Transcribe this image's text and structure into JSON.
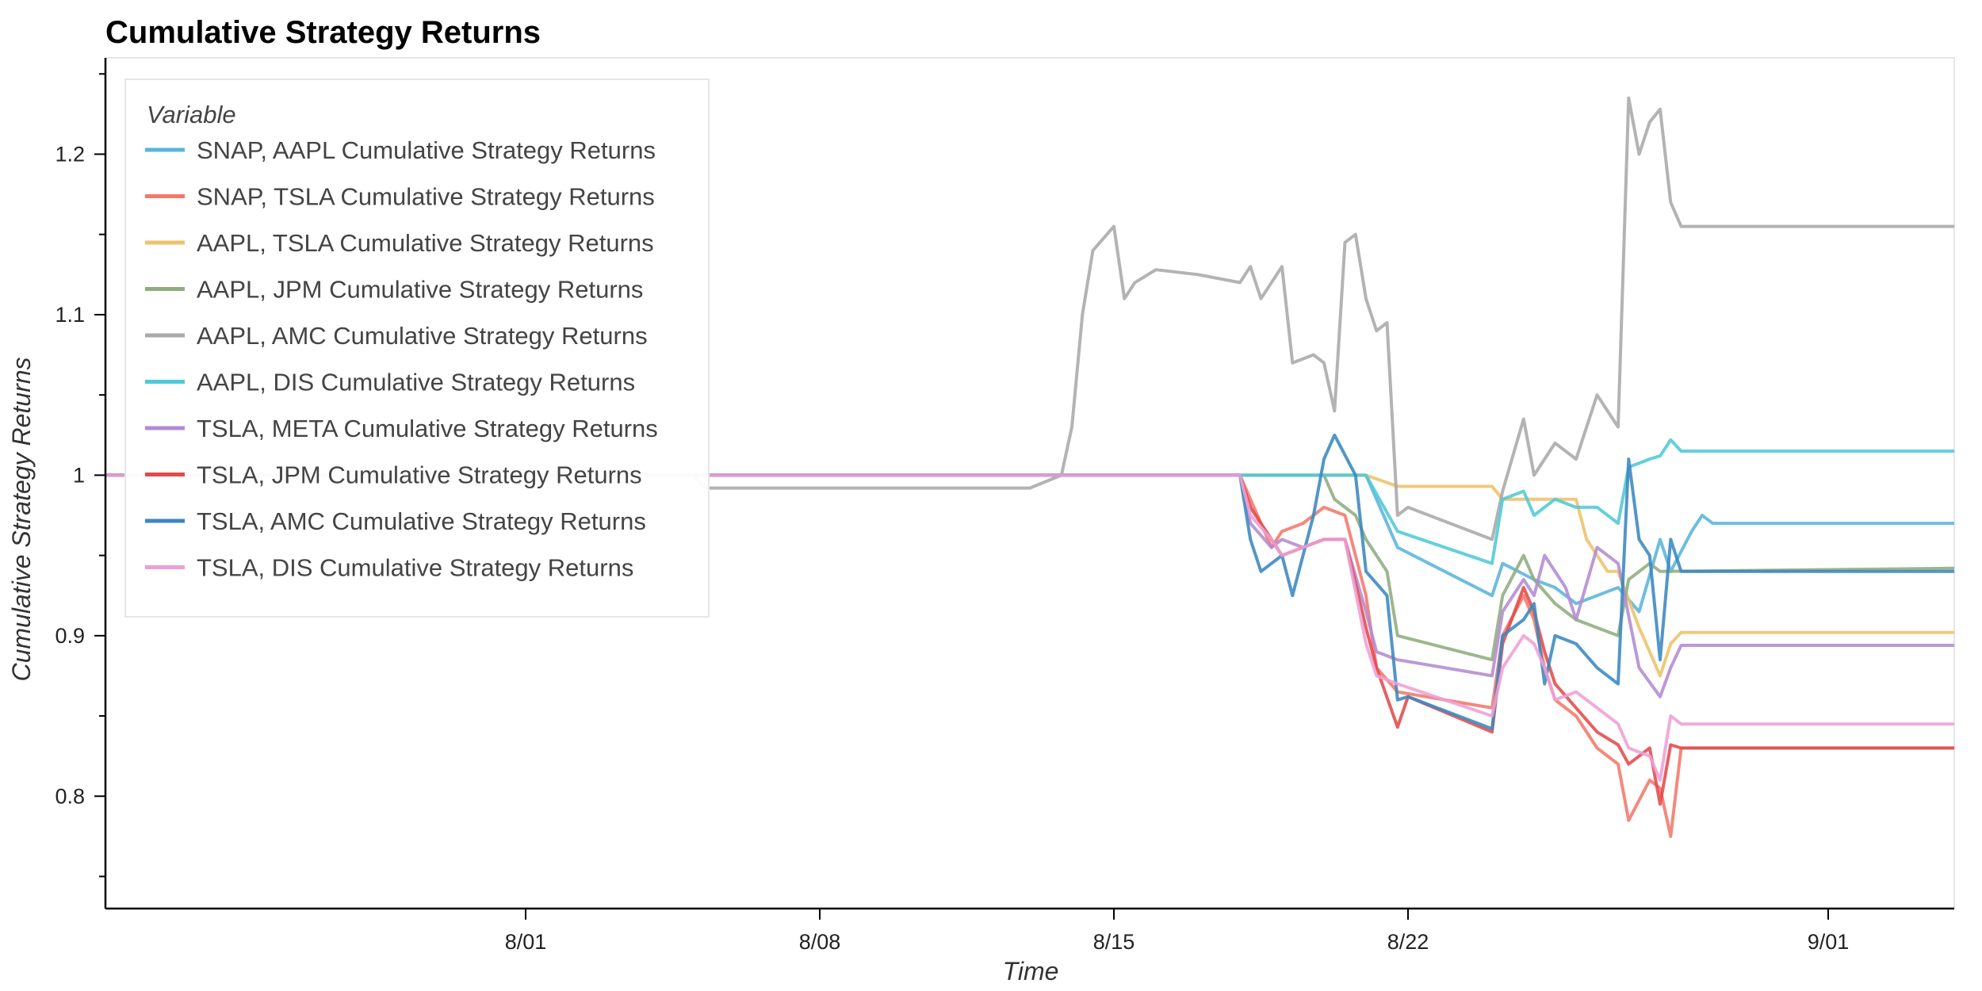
{
  "chart_data": {
    "type": "line",
    "title": "Cumulative Strategy Returns",
    "xlabel": "Time",
    "ylabel": "Cumulative Strategy Returns",
    "xlim": [
      "2023-07-22",
      "2023-09-04"
    ],
    "ylim": [
      0.73,
      1.26
    ],
    "x_ticks": [
      {
        "label": "8/01",
        "date": "2023-08-01"
      },
      {
        "label": "8/08",
        "date": "2023-08-08"
      },
      {
        "label": "8/15",
        "date": "2023-08-15"
      },
      {
        "label": "8/22",
        "date": "2023-08-22"
      },
      {
        "label": "9/01",
        "date": "2023-09-01"
      }
    ],
    "y_ticks": [
      0.8,
      0.9,
      1.0,
      1.1,
      1.2
    ],
    "y_tick_labels": [
      "0.8",
      "0.9",
      "1",
      "1.1",
      "1.2"
    ],
    "legend": {
      "title": "Variable",
      "position": "top-left"
    },
    "grid": false,
    "series": [
      {
        "name": "SNAP, AAPL Cumulative Strategy Returns",
        "color": "#5ab4dc",
        "points": [
          [
            "2023-07-22",
            1.0
          ],
          [
            "2023-08-19",
            1.0
          ],
          [
            "2023-08-20",
            1.0
          ],
          [
            "2023-08-21",
            1.0
          ],
          [
            "2023-08-21T18:00",
            0.955
          ],
          [
            "2023-08-24",
            0.925
          ],
          [
            "2023-08-24T06:00",
            0.945
          ],
          [
            "2023-08-25",
            0.935
          ],
          [
            "2023-08-25T12:00",
            0.93
          ],
          [
            "2023-08-26",
            0.92
          ],
          [
            "2023-08-26T12:00",
            0.925
          ],
          [
            "2023-08-27",
            0.93
          ],
          [
            "2023-08-27T12:00",
            0.915
          ],
          [
            "2023-08-28",
            0.96
          ],
          [
            "2023-08-28T06:00",
            0.94
          ],
          [
            "2023-08-28T18:00",
            0.965
          ],
          [
            "2023-08-29",
            0.975
          ],
          [
            "2023-08-29T06:00",
            0.97
          ],
          [
            "2023-09-04",
            0.97
          ]
        ]
      },
      {
        "name": "SNAP, TSLA Cumulative Strategy Returns",
        "color": "#f4786a",
        "points": [
          [
            "2023-07-22",
            1.0
          ],
          [
            "2023-08-18",
            1.0
          ],
          [
            "2023-08-18T06:00",
            0.985
          ],
          [
            "2023-08-18T18:00",
            0.955
          ],
          [
            "2023-08-19",
            0.965
          ],
          [
            "2023-08-19T12:00",
            0.97
          ],
          [
            "2023-08-20",
            0.98
          ],
          [
            "2023-08-20T12:00",
            0.975
          ],
          [
            "2023-08-21",
            0.925
          ],
          [
            "2023-08-21T06:00",
            0.88
          ],
          [
            "2023-08-21T18:00",
            0.865
          ],
          [
            "2023-08-24",
            0.855
          ],
          [
            "2023-08-24T06:00",
            0.9
          ],
          [
            "2023-08-24T18:00",
            0.925
          ],
          [
            "2023-08-25",
            0.91
          ],
          [
            "2023-08-25T06:00",
            0.88
          ],
          [
            "2023-08-25T12:00",
            0.86
          ],
          [
            "2023-08-26",
            0.85
          ],
          [
            "2023-08-26T12:00",
            0.83
          ],
          [
            "2023-08-27",
            0.82
          ],
          [
            "2023-08-27T06:00",
            0.785
          ],
          [
            "2023-08-27T18:00",
            0.81
          ],
          [
            "2023-08-28",
            0.805
          ],
          [
            "2023-08-28T06:00",
            0.775
          ],
          [
            "2023-08-28T12:00",
            0.83
          ],
          [
            "2023-09-04",
            0.83
          ]
        ]
      },
      {
        "name": "AAPL, TSLA Cumulative Strategy Returns",
        "color": "#eec26a",
        "points": [
          [
            "2023-07-22",
            1.0
          ],
          [
            "2023-08-21",
            1.0
          ],
          [
            "2023-08-21T18:00",
            0.993
          ],
          [
            "2023-08-24",
            0.993
          ],
          [
            "2023-08-24T06:00",
            0.985
          ],
          [
            "2023-08-26",
            0.985
          ],
          [
            "2023-08-26T06:00",
            0.96
          ],
          [
            "2023-08-26T18:00",
            0.94
          ],
          [
            "2023-08-27",
            0.94
          ],
          [
            "2023-08-27T12:00",
            0.905
          ],
          [
            "2023-08-27T18:00",
            0.89
          ],
          [
            "2023-08-28",
            0.875
          ],
          [
            "2023-08-28T06:00",
            0.895
          ],
          [
            "2023-08-28T12:00",
            0.902
          ],
          [
            "2023-09-04",
            0.902
          ]
        ]
      },
      {
        "name": "AAPL, JPM Cumulative Strategy Returns",
        "color": "#8fad7d",
        "points": [
          [
            "2023-07-22",
            1.0
          ],
          [
            "2023-08-20",
            1.0
          ],
          [
            "2023-08-20T06:00",
            0.985
          ],
          [
            "2023-08-20T18:00",
            0.975
          ],
          [
            "2023-08-21",
            0.96
          ],
          [
            "2023-08-21T12:00",
            0.94
          ],
          [
            "2023-08-21T18:00",
            0.9
          ],
          [
            "2023-08-24",
            0.885
          ],
          [
            "2023-08-24T06:00",
            0.925
          ],
          [
            "2023-08-24T18:00",
            0.95
          ],
          [
            "2023-08-25",
            0.935
          ],
          [
            "2023-08-25T12:00",
            0.92
          ],
          [
            "2023-08-26",
            0.91
          ],
          [
            "2023-08-26T12:00",
            0.905
          ],
          [
            "2023-08-27",
            0.9
          ],
          [
            "2023-08-27T06:00",
            0.935
          ],
          [
            "2023-08-27T18:00",
            0.945
          ],
          [
            "2023-08-28",
            0.94
          ],
          [
            "2023-09-04",
            0.942
          ]
        ]
      },
      {
        "name": "AAPL, AMC Cumulative Strategy Returns",
        "color": "#a9a9a9",
        "points": [
          [
            "2023-07-22",
            1.0
          ],
          [
            "2023-08-05",
            1.0
          ],
          [
            "2023-08-05T06:00",
            0.992
          ],
          [
            "2023-08-13",
            0.992
          ],
          [
            "2023-08-13T18:00",
            1.0
          ],
          [
            "2023-08-14",
            1.03
          ],
          [
            "2023-08-14T06:00",
            1.1
          ],
          [
            "2023-08-14T12:00",
            1.14
          ],
          [
            "2023-08-15",
            1.155
          ],
          [
            "2023-08-15T06:00",
            1.11
          ],
          [
            "2023-08-15T12:00",
            1.12
          ],
          [
            "2023-08-16",
            1.128
          ],
          [
            "2023-08-17",
            1.125
          ],
          [
            "2023-08-18",
            1.12
          ],
          [
            "2023-08-18T06:00",
            1.13
          ],
          [
            "2023-08-18T12:00",
            1.11
          ],
          [
            "2023-08-19",
            1.13
          ],
          [
            "2023-08-19T06:00",
            1.07
          ],
          [
            "2023-08-19T18:00",
            1.075
          ],
          [
            "2023-08-20",
            1.07
          ],
          [
            "2023-08-20T06:00",
            1.04
          ],
          [
            "2023-08-20T12:00",
            1.145
          ],
          [
            "2023-08-20T18:00",
            1.15
          ],
          [
            "2023-08-21",
            1.11
          ],
          [
            "2023-08-21T06:00",
            1.09
          ],
          [
            "2023-08-21T12:00",
            1.095
          ],
          [
            "2023-08-21T18:00",
            0.975
          ],
          [
            "2023-08-22",
            0.98
          ],
          [
            "2023-08-24",
            0.96
          ],
          [
            "2023-08-24T06:00",
            0.99
          ],
          [
            "2023-08-24T18:00",
            1.035
          ],
          [
            "2023-08-25",
            1.0
          ],
          [
            "2023-08-25T12:00",
            1.02
          ],
          [
            "2023-08-26",
            1.01
          ],
          [
            "2023-08-26T12:00",
            1.05
          ],
          [
            "2023-08-27",
            1.03
          ],
          [
            "2023-08-27T06:00",
            1.235
          ],
          [
            "2023-08-27T12:00",
            1.2
          ],
          [
            "2023-08-27T18:00",
            1.22
          ],
          [
            "2023-08-28",
            1.228
          ],
          [
            "2023-08-28T06:00",
            1.17
          ],
          [
            "2023-08-28T12:00",
            1.155
          ],
          [
            "2023-09-04",
            1.155
          ]
        ]
      },
      {
        "name": "AAPL, DIS Cumulative Strategy Returns",
        "color": "#4ecad6",
        "points": [
          [
            "2023-07-22",
            1.0
          ],
          [
            "2023-08-18",
            1.0
          ],
          [
            "2023-08-21",
            1.0
          ],
          [
            "2023-08-21T18:00",
            0.965
          ],
          [
            "2023-08-24",
            0.945
          ],
          [
            "2023-08-24T06:00",
            0.985
          ],
          [
            "2023-08-24T18:00",
            0.99
          ],
          [
            "2023-08-25",
            0.975
          ],
          [
            "2023-08-25T12:00",
            0.985
          ],
          [
            "2023-08-26",
            0.98
          ],
          [
            "2023-08-26T12:00",
            0.98
          ],
          [
            "2023-08-27",
            0.97
          ],
          [
            "2023-08-27T06:00",
            1.005
          ],
          [
            "2023-08-27T18:00",
            1.01
          ],
          [
            "2023-08-28",
            1.012
          ],
          [
            "2023-08-28T06:00",
            1.022
          ],
          [
            "2023-08-28T12:00",
            1.015
          ],
          [
            "2023-09-04",
            1.015
          ]
        ]
      },
      {
        "name": "TSLA, META Cumulative Strategy Returns",
        "color": "#b38bd0",
        "points": [
          [
            "2023-07-22",
            1.0
          ],
          [
            "2023-08-18",
            1.0
          ],
          [
            "2023-08-18T06:00",
            0.97
          ],
          [
            "2023-08-18T18:00",
            0.955
          ],
          [
            "2023-08-19",
            0.96
          ],
          [
            "2023-08-19T12:00",
            0.955
          ],
          [
            "2023-08-20",
            0.96
          ],
          [
            "2023-08-20T12:00",
            0.96
          ],
          [
            "2023-08-21",
            0.915
          ],
          [
            "2023-08-21T06:00",
            0.89
          ],
          [
            "2023-08-21T18:00",
            0.885
          ],
          [
            "2023-08-24",
            0.875
          ],
          [
            "2023-08-24T06:00",
            0.915
          ],
          [
            "2023-08-24T18:00",
            0.935
          ],
          [
            "2023-08-25",
            0.925
          ],
          [
            "2023-08-25T06:00",
            0.95
          ],
          [
            "2023-08-25T18:00",
            0.93
          ],
          [
            "2023-08-26",
            0.91
          ],
          [
            "2023-08-26T12:00",
            0.955
          ],
          [
            "2023-08-27",
            0.945
          ],
          [
            "2023-08-27T12:00",
            0.88
          ],
          [
            "2023-08-28",
            0.862
          ],
          [
            "2023-08-28T06:00",
            0.88
          ],
          [
            "2023-08-28T12:00",
            0.894
          ],
          [
            "2023-09-04",
            0.894
          ]
        ]
      },
      {
        "name": "TSLA, JPM Cumulative Strategy Returns",
        "color": "#e24a4a",
        "points": [
          [
            "2023-07-22",
            1.0
          ],
          [
            "2023-08-18",
            1.0
          ],
          [
            "2023-08-18T06:00",
            0.98
          ],
          [
            "2023-08-18T18:00",
            0.96
          ],
          [
            "2023-08-19",
            0.95
          ],
          [
            "2023-08-19T12:00",
            0.955
          ],
          [
            "2023-08-20",
            0.96
          ],
          [
            "2023-08-20T12:00",
            0.96
          ],
          [
            "2023-08-21",
            0.905
          ],
          [
            "2023-08-21T06:00",
            0.88
          ],
          [
            "2023-08-21T18:00",
            0.843
          ],
          [
            "2023-08-22",
            0.862
          ],
          [
            "2023-08-24",
            0.84
          ],
          [
            "2023-08-24T06:00",
            0.895
          ],
          [
            "2023-08-24T18:00",
            0.93
          ],
          [
            "2023-08-25",
            0.915
          ],
          [
            "2023-08-25T06:00",
            0.89
          ],
          [
            "2023-08-25T12:00",
            0.87
          ],
          [
            "2023-08-26",
            0.855
          ],
          [
            "2023-08-26T12:00",
            0.84
          ],
          [
            "2023-08-27",
            0.832
          ],
          [
            "2023-08-27T06:00",
            0.82
          ],
          [
            "2023-08-27T18:00",
            0.83
          ],
          [
            "2023-08-28",
            0.795
          ],
          [
            "2023-08-28T06:00",
            0.832
          ],
          [
            "2023-08-28T12:00",
            0.83
          ],
          [
            "2023-09-04",
            0.83
          ]
        ]
      },
      {
        "name": "TSLA, AMC Cumulative Strategy Returns",
        "color": "#3a87c0",
        "points": [
          [
            "2023-07-22",
            1.0
          ],
          [
            "2023-08-18",
            1.0
          ],
          [
            "2023-08-18T06:00",
            0.96
          ],
          [
            "2023-08-18T12:00",
            0.94
          ],
          [
            "2023-08-19",
            0.95
          ],
          [
            "2023-08-19T06:00",
            0.925
          ],
          [
            "2023-08-19T18:00",
            0.975
          ],
          [
            "2023-08-20",
            1.01
          ],
          [
            "2023-08-20T06:00",
            1.025
          ],
          [
            "2023-08-20T18:00",
            1.0
          ],
          [
            "2023-08-21",
            0.94
          ],
          [
            "2023-08-21T12:00",
            0.925
          ],
          [
            "2023-08-21T18:00",
            0.86
          ],
          [
            "2023-08-22",
            0.862
          ],
          [
            "2023-08-24",
            0.842
          ],
          [
            "2023-08-24T06:00",
            0.9
          ],
          [
            "2023-08-24T18:00",
            0.91
          ],
          [
            "2023-08-25",
            0.92
          ],
          [
            "2023-08-25T06:00",
            0.87
          ],
          [
            "2023-08-25T12:00",
            0.9
          ],
          [
            "2023-08-26",
            0.895
          ],
          [
            "2023-08-26T12:00",
            0.88
          ],
          [
            "2023-08-27",
            0.87
          ],
          [
            "2023-08-27T06:00",
            1.01
          ],
          [
            "2023-08-27T12:00",
            0.96
          ],
          [
            "2023-08-27T18:00",
            0.95
          ],
          [
            "2023-08-28",
            0.885
          ],
          [
            "2023-08-28T06:00",
            0.96
          ],
          [
            "2023-08-28T12:00",
            0.94
          ],
          [
            "2023-09-04",
            0.94
          ]
        ]
      },
      {
        "name": "TSLA, DIS Cumulative Strategy Returns",
        "color": "#ee9fd6",
        "points": [
          [
            "2023-07-22",
            1.0
          ],
          [
            "2023-08-18",
            1.0
          ],
          [
            "2023-08-18T06:00",
            0.975
          ],
          [
            "2023-08-18T18:00",
            0.96
          ],
          [
            "2023-08-19",
            0.95
          ],
          [
            "2023-08-19T12:00",
            0.955
          ],
          [
            "2023-08-20",
            0.96
          ],
          [
            "2023-08-20T12:00",
            0.96
          ],
          [
            "2023-08-21",
            0.895
          ],
          [
            "2023-08-21T06:00",
            0.875
          ],
          [
            "2023-08-21T18:00",
            0.87
          ],
          [
            "2023-08-24",
            0.85
          ],
          [
            "2023-08-24T06:00",
            0.88
          ],
          [
            "2023-08-24T18:00",
            0.9
          ],
          [
            "2023-08-25",
            0.895
          ],
          [
            "2023-08-25T06:00",
            0.88
          ],
          [
            "2023-08-25T12:00",
            0.86
          ],
          [
            "2023-08-26",
            0.865
          ],
          [
            "2023-08-26T12:00",
            0.855
          ],
          [
            "2023-08-27",
            0.845
          ],
          [
            "2023-08-27T06:00",
            0.83
          ],
          [
            "2023-08-27T18:00",
            0.825
          ],
          [
            "2023-08-28",
            0.81
          ],
          [
            "2023-08-28T06:00",
            0.85
          ],
          [
            "2023-08-28T12:00",
            0.845
          ],
          [
            "2023-09-04",
            0.845
          ]
        ]
      }
    ]
  }
}
